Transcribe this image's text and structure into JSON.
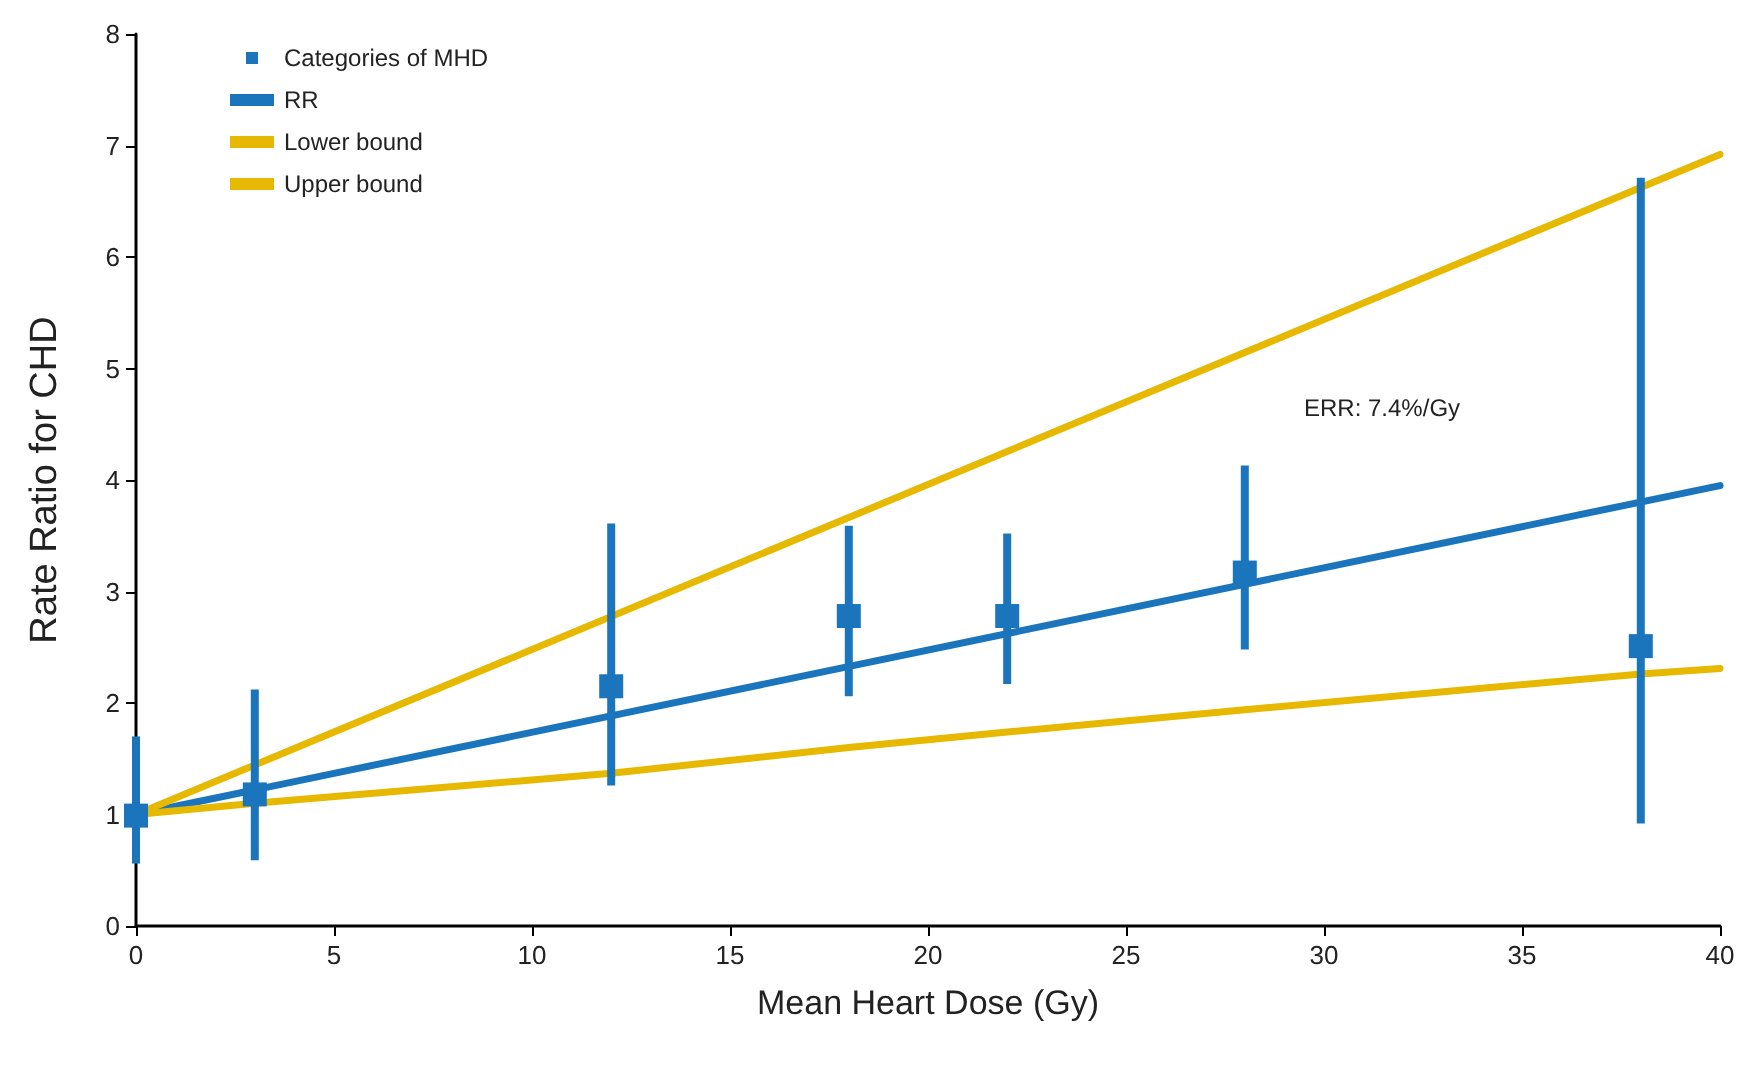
{
  "chart_data": {
    "type": "scatter",
    "xlabel": "Mean Heart Dose (Gy)",
    "ylabel": "Rate Ratio for CHD",
    "xlim": [
      0,
      40
    ],
    "xticks": [
      0,
      5,
      10,
      15,
      20,
      25,
      30,
      35,
      40
    ],
    "ylim": [
      0,
      8
    ],
    "yticks": [
      0,
      1,
      2,
      3,
      4,
      5,
      6,
      7,
      8
    ],
    "grid": false,
    "legend": "top left",
    "annotations": [
      "ERR: 7.4%/Gy"
    ],
    "series": [
      {
        "name": "Categories of MHD",
        "marker": "square",
        "color": "#1a75bc",
        "x": [
          0,
          3,
          12,
          18,
          22,
          28,
          38
        ],
        "values": [
          0.99,
          1.18,
          2.15,
          2.78,
          2.78,
          3.17,
          2.51
        ],
        "errors": [
          [
            0.56,
            1.7
          ],
          [
            0.59,
            2.12
          ],
          [
            1.26,
            3.61
          ],
          [
            2.06,
            3.59
          ],
          [
            2.17,
            3.52
          ],
          [
            2.48,
            4.13
          ],
          [
            0.92,
            6.71
          ]
        ]
      },
      {
        "name": "RR",
        "type": "line",
        "marker": "none",
        "color": "#1a75bc",
        "x": [
          0,
          40
        ],
        "values": [
          1,
          3.95
        ]
      },
      {
        "name": "Lower bound",
        "type": "line",
        "marker": "none",
        "color": "#e6b800",
        "x": [
          0,
          3,
          12,
          18,
          22,
          28,
          38,
          40
        ],
        "values": [
          1,
          1.1,
          1.37,
          1.6,
          1.74,
          1.94,
          2.26,
          2.31
        ]
      },
      {
        "name": "Upper bound",
        "type": "line",
        "marker": "none",
        "color": "#e6b800",
        "x": [
          0,
          40
        ],
        "values": [
          1,
          6.92
        ]
      }
    ]
  }
}
